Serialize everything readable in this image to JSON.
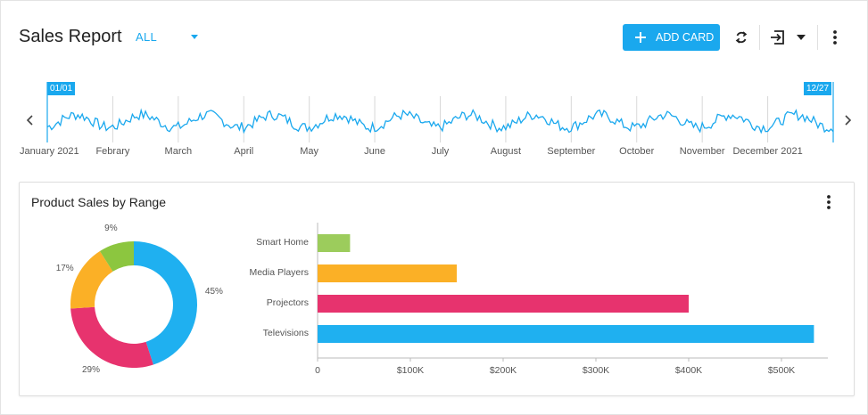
{
  "header": {
    "title": "Sales Report",
    "filter_value": "ALL",
    "add_card_label": "ADD CARD",
    "colors": {
      "accent": "#1aa8ee"
    }
  },
  "timeline": {
    "start_tag": "01/01",
    "end_tag": "12/27",
    "months": [
      "January 2021",
      "Febrary",
      "March",
      "April",
      "May",
      "June",
      "July",
      "August",
      "September",
      "October",
      "November",
      "December 2021"
    ],
    "line_color": "#1aa8ee"
  },
  "card": {
    "title": "Product Sales by Range"
  },
  "chart_data": [
    {
      "type": "pie",
      "variant": "donut",
      "labels": [
        "Televisions",
        "Projectors",
        "Media Players",
        "Smart Home"
      ],
      "values": [
        45,
        29,
        17,
        9
      ],
      "value_labels": [
        "45%",
        "29%",
        "17%",
        "9%"
      ],
      "colors": [
        "#1fb0f0",
        "#e7336e",
        "#fbb026",
        "#8cc63f"
      ]
    },
    {
      "type": "bar",
      "orientation": "horizontal",
      "categories": [
        "Smart Home",
        "Media Players",
        "Projectors",
        "Televisions"
      ],
      "values": [
        35000,
        150000,
        400000,
        535000
      ],
      "colors": [
        "#9ccc5c",
        "#fbb026",
        "#e7336e",
        "#1fb0f0"
      ],
      "xlim": [
        0,
        550000
      ],
      "x_ticks": [
        "0",
        "$100K",
        "$200K",
        "$300K",
        "$400K",
        "$500K"
      ],
      "grid": false
    }
  ]
}
